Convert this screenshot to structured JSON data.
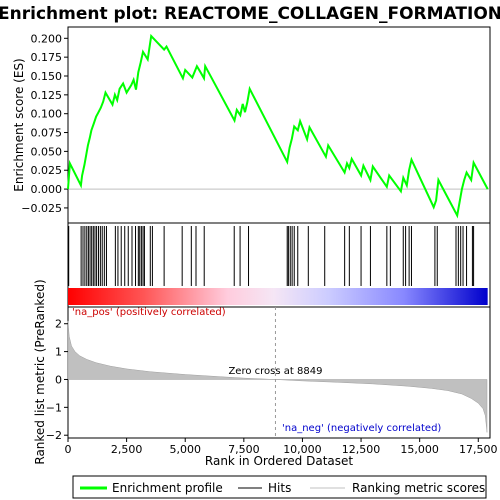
{
  "title": "Enrichment plot: REACTOME_COLLAGEN_FORMATION",
  "chart_data": {
    "type": "line",
    "top_panel": {
      "ylabel": "Enrichment score (ES)",
      "ylim": [
        -0.045,
        0.215
      ],
      "yticks": [
        -0.025,
        0.0,
        0.025,
        0.05,
        0.075,
        0.1,
        0.125,
        0.15,
        0.175,
        0.2
      ],
      "ytick_labels": [
        "−0.025",
        "0.000",
        "0.025",
        "0.050",
        "0.075",
        "0.100",
        "0.125",
        "0.150",
        "0.175",
        "0.200"
      ],
      "series_color": "#00ff00",
      "points": [
        [
          0,
          0.0
        ],
        [
          80,
          0.034
        ],
        [
          550,
          0.005
        ],
        [
          600,
          0.018
        ],
        [
          700,
          0.032
        ],
        [
          780,
          0.046
        ],
        [
          850,
          0.058
        ],
        [
          930,
          0.068
        ],
        [
          1000,
          0.078
        ],
        [
          1100,
          0.087
        ],
        [
          1200,
          0.096
        ],
        [
          1300,
          0.102
        ],
        [
          1400,
          0.108
        ],
        [
          1500,
          0.116
        ],
        [
          1600,
          0.128
        ],
        [
          1900,
          0.112
        ],
        [
          2000,
          0.125
        ],
        [
          2100,
          0.118
        ],
        [
          2200,
          0.133
        ],
        [
          2350,
          0.14
        ],
        [
          2500,
          0.128
        ],
        [
          2700,
          0.138
        ],
        [
          2800,
          0.145
        ],
        [
          2900,
          0.132
        ],
        [
          3000,
          0.155
        ],
        [
          3100,
          0.168
        ],
        [
          3200,
          0.182
        ],
        [
          3400,
          0.172
        ],
        [
          3550,
          0.203
        ],
        [
          4100,
          0.185
        ],
        [
          4200,
          0.189
        ],
        [
          4900,
          0.147
        ],
        [
          5000,
          0.158
        ],
        [
          5300,
          0.148
        ],
        [
          5500,
          0.163
        ],
        [
          5650,
          0.155
        ],
        [
          5800,
          0.147
        ],
        [
          5850,
          0.163
        ],
        [
          6100,
          0.149
        ],
        [
          7100,
          0.091
        ],
        [
          7200,
          0.105
        ],
        [
          7350,
          0.098
        ],
        [
          7450,
          0.113
        ],
        [
          7550,
          0.102
        ],
        [
          7650,
          0.115
        ],
        [
          7750,
          0.133
        ],
        [
          9350,
          0.036
        ],
        [
          9450,
          0.055
        ],
        [
          9550,
          0.067
        ],
        [
          9650,
          0.083
        ],
        [
          9800,
          0.078
        ],
        [
          9900,
          0.09
        ],
        [
          10200,
          0.066
        ],
        [
          10300,
          0.082
        ],
        [
          11000,
          0.043
        ],
        [
          11100,
          0.058
        ],
        [
          11800,
          0.022
        ],
        [
          11900,
          0.034
        ],
        [
          12000,
          0.028
        ],
        [
          12100,
          0.04
        ],
        [
          12500,
          0.018
        ],
        [
          12600,
          0.031
        ],
        [
          12900,
          0.012
        ],
        [
          13000,
          0.03
        ],
        [
          13600,
          0.003
        ],
        [
          13700,
          0.018
        ],
        [
          14200,
          -0.003
        ],
        [
          14300,
          0.015
        ],
        [
          14450,
          0.005
        ],
        [
          14550,
          0.025
        ],
        [
          14650,
          0.039
        ],
        [
          15600,
          -0.024
        ],
        [
          15700,
          -0.015
        ],
        [
          15800,
          0.012
        ],
        [
          16600,
          -0.035
        ],
        [
          16700,
          -0.018
        ],
        [
          16800,
          0.0
        ],
        [
          16900,
          0.012
        ],
        [
          17000,
          0.022
        ],
        [
          17200,
          0.012
        ],
        [
          17300,
          0.035
        ],
        [
          17900,
          0.0
        ]
      ]
    },
    "middle_panel": {
      "hit_positions": [
        30,
        560,
        640,
        720,
        800,
        870,
        940,
        1010,
        1080,
        1150,
        1220,
        1300,
        1380,
        1460,
        1550,
        1640,
        2020,
        2130,
        2270,
        2420,
        2570,
        2730,
        2880,
        3000,
        3060,
        3130,
        3200,
        3260,
        3510,
        3600,
        4100,
        4870,
        5260,
        5460,
        5810,
        7090,
        7340,
        7700,
        9350,
        9400,
        9480,
        9560,
        9650,
        9800,
        10250,
        10950,
        11800,
        12000,
        12500,
        12900,
        13600,
        13750,
        14300,
        14400,
        14550,
        14650,
        15650,
        15750,
        16550,
        16650,
        16750,
        16850,
        17000,
        17250,
        17300
      ],
      "gradient_colors": [
        "#ff0000",
        "#ffffff",
        "#0000ff"
      ]
    },
    "bottom_panel": {
      "ylabel": "Ranked list metric (PreRanked)",
      "xlabel": "Rank in Ordered Dataset",
      "ylim": [
        -2.1,
        2.6
      ],
      "yticks": [
        -2,
        -1,
        0,
        1,
        2
      ],
      "ytick_labels": [
        "−2",
        "−1",
        "0",
        "1",
        "2"
      ],
      "xlim": [
        0,
        18000
      ],
      "xticks": [
        0,
        2500,
        5000,
        7500,
        10000,
        12500,
        15000,
        17500
      ],
      "xtick_labels": [
        "0",
        "2,500",
        "5,000",
        "7,500",
        "10,000",
        "12,500",
        "15,000",
        "17,500"
      ],
      "fill_color": "#c0c0c0",
      "metric_curve": [
        [
          0,
          2.1
        ],
        [
          50,
          1.55
        ],
        [
          150,
          1.2
        ],
        [
          300,
          1.0
        ],
        [
          500,
          0.85
        ],
        [
          800,
          0.72
        ],
        [
          1200,
          0.6
        ],
        [
          1800,
          0.48
        ],
        [
          2500,
          0.38
        ],
        [
          3500,
          0.28
        ],
        [
          5000,
          0.18
        ],
        [
          6500,
          0.1
        ],
        [
          7500,
          0.05
        ],
        [
          8849,
          0.0
        ],
        [
          10000,
          -0.05
        ],
        [
          11500,
          -0.1
        ],
        [
          13000,
          -0.16
        ],
        [
          14500,
          -0.24
        ],
        [
          15500,
          -0.32
        ],
        [
          16200,
          -0.4
        ],
        [
          16800,
          -0.52
        ],
        [
          17200,
          -0.68
        ],
        [
          17500,
          -0.85
        ],
        [
          17700,
          -1.05
        ],
        [
          17800,
          -1.3
        ],
        [
          17870,
          -1.9
        ]
      ],
      "zero_cross_rank": 8849,
      "zero_cross_label": "Zero cross at 8849",
      "pos_label": "'na_pos' (positively correlated)",
      "neg_label": "'na_neg' (negatively correlated)",
      "pos_label_color": "#cc0000",
      "neg_label_color": "#0000cc"
    },
    "legend": {
      "placement": "bottom",
      "entries": [
        {
          "label": "Enrichment profile",
          "color": "#00ff00",
          "icon": "green-line"
        },
        {
          "label": "Hits",
          "color": "#000000",
          "icon": "black-line"
        },
        {
          "label": "Ranking metric scores",
          "color": "#c0c0c0",
          "icon": "gray-line"
        }
      ]
    }
  }
}
